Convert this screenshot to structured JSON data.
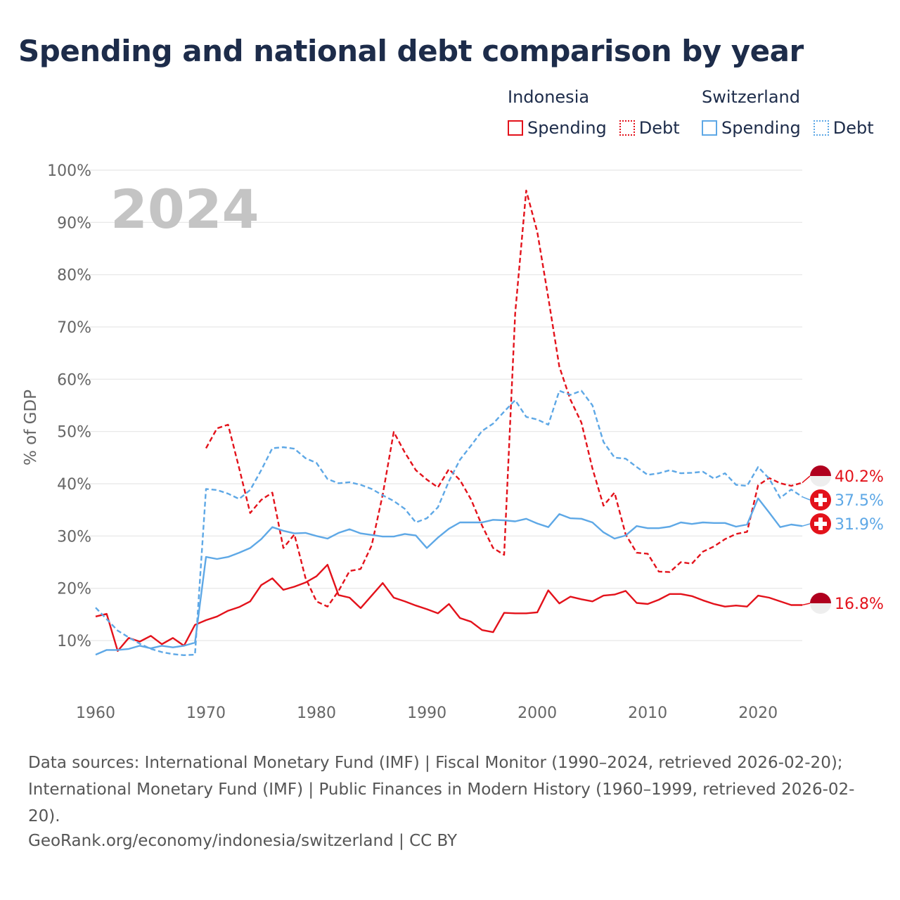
{
  "title": "Spending and national debt comparison by year",
  "legend": {
    "groups": [
      {
        "country": "Indonesia",
        "color": "#e3121b",
        "items": [
          {
            "label": "Spending",
            "style": "solid"
          },
          {
            "label": "Debt",
            "style": "dotted"
          }
        ]
      },
      {
        "country": "Switzerland",
        "color": "#5ea8e6",
        "items": [
          {
            "label": "Spending",
            "style": "solid"
          },
          {
            "label": "Debt",
            "style": "dotted"
          }
        ]
      }
    ]
  },
  "year_watermark": "2024",
  "sources": "Data sources: International Monetary Fund (IMF) | Fiscal Monitor (1990–2024, retrieved 2026-02-20); International Monetary Fund (IMF) | Public Finances in Modern History (1960–1999, retrieved 2026-02-20).",
  "credit": "GeoRank.org/economy/indonesia/switzerland | CC BY",
  "colors": {
    "indonesia": "#e3121b",
    "switzerland": "#5ea8e6",
    "grid": "#e6e6e6",
    "axis_text": "#666666",
    "title": "#1d2c4a"
  },
  "chart_data": {
    "type": "line",
    "title": "Spending and national debt comparison by year",
    "xlabel": "",
    "ylabel": "% of GDP",
    "xlim": [
      1960,
      2024
    ],
    "ylim": [
      0,
      100
    ],
    "x_ticks": [
      1960,
      1970,
      1980,
      1990,
      2000,
      2010,
      2020
    ],
    "x_tick_labels": [
      "1960",
      "1970",
      "1980",
      "1990",
      "2000",
      "2010",
      "2020"
    ],
    "y_ticks": [
      10,
      20,
      30,
      40,
      50,
      60,
      70,
      80,
      90,
      100
    ],
    "y_tick_labels": [
      "10%",
      "20%",
      "30%",
      "40%",
      "50%",
      "60%",
      "70%",
      "80%",
      "90%",
      "100%"
    ],
    "grid": true,
    "series": [
      {
        "name": "Indonesia Spending",
        "country": "indonesia",
        "style": "solid",
        "x": [
          1960,
          1961,
          1962,
          1963,
          1964,
          1965,
          1966,
          1967,
          1968,
          1969,
          1970,
          1971,
          1972,
          1973,
          1974,
          1975,
          1976,
          1977,
          1978,
          1979,
          1980,
          1981,
          1982,
          1983,
          1984,
          1985,
          1986,
          1987,
          1988,
          1989,
          1990,
          1991,
          1992,
          1993,
          1994,
          1995,
          1996,
          1997,
          1998,
          1999,
          2000,
          2001,
          2002,
          2003,
          2004,
          2005,
          2006,
          2007,
          2008,
          2009,
          2010,
          2011,
          2012,
          2013,
          2014,
          2015,
          2016,
          2017,
          2018,
          2019,
          2020,
          2021,
          2022,
          2023,
          2024
        ],
        "values": [
          14.6,
          15.1,
          8.0,
          10.5,
          9.8,
          10.9,
          9.3,
          10.5,
          9.0,
          13.0,
          13.9,
          14.6,
          15.7,
          16.4,
          17.5,
          20.6,
          21.9,
          19.7,
          20.3,
          21.1,
          22.3,
          24.5,
          18.7,
          18.2,
          16.2,
          18.6,
          21.0,
          18.2,
          17.5,
          16.7,
          16.0,
          15.2,
          17.0,
          14.3,
          13.6,
          12.0,
          11.6,
          15.3,
          15.2,
          15.2,
          15.4,
          19.6,
          17.1,
          18.4,
          17.9,
          17.5,
          18.6,
          18.8,
          19.5,
          17.2,
          17.0,
          17.8,
          18.9,
          18.9,
          18.5,
          17.7,
          17.0,
          16.5,
          16.7,
          16.5,
          18.6,
          18.2,
          17.5,
          16.8,
          16.8
        ]
      },
      {
        "name": "Indonesia Debt",
        "country": "indonesia",
        "style": "dotted",
        "x": [
          1970,
          1971,
          1972,
          1973,
          1974,
          1975,
          1976,
          1977,
          1978,
          1979,
          1980,
          1981,
          1982,
          1983,
          1984,
          1985,
          1986,
          1987,
          1988,
          1989,
          1990,
          1991,
          1992,
          1993,
          1994,
          1995,
          1996,
          1997,
          1998,
          1999,
          2000,
          2001,
          2002,
          2003,
          2004,
          2005,
          2006,
          2007,
          2008,
          2009,
          2010,
          2011,
          2012,
          2013,
          2014,
          2015,
          2016,
          2017,
          2018,
          2019,
          2020,
          2021,
          2022,
          2023,
          2024
        ],
        "values": [
          46.8,
          50.6,
          51.3,
          43.0,
          34.4,
          36.9,
          38.3,
          27.7,
          30.3,
          22.0,
          17.5,
          16.5,
          19.5,
          23.3,
          23.7,
          28.2,
          37.9,
          49.9,
          46.0,
          42.6,
          40.8,
          39.3,
          42.8,
          40.7,
          37.0,
          32.0,
          27.7,
          26.4,
          72.6,
          96.1,
          88.2,
          75.6,
          62.4,
          56.1,
          51.7,
          42.9,
          35.8,
          38.3,
          30.3,
          26.8,
          26.6,
          23.2,
          23.1,
          25.0,
          24.7,
          27.0,
          28.0,
          29.4,
          30.4,
          30.8,
          39.7,
          41.1,
          40.1,
          39.6,
          40.2
        ]
      },
      {
        "name": "Switzerland Spending",
        "country": "switzerland",
        "style": "solid",
        "x": [
          1960,
          1961,
          1962,
          1963,
          1964,
          1965,
          1966,
          1967,
          1968,
          1969,
          1970,
          1971,
          1972,
          1973,
          1974,
          1975,
          1976,
          1977,
          1978,
          1979,
          1980,
          1981,
          1982,
          1983,
          1984,
          1985,
          1986,
          1987,
          1988,
          1989,
          1990,
          1991,
          1992,
          1993,
          1994,
          1995,
          1996,
          1997,
          1998,
          1999,
          2000,
          2001,
          2002,
          2003,
          2004,
          2005,
          2006,
          2007,
          2008,
          2009,
          2010,
          2011,
          2012,
          2013,
          2014,
          2015,
          2016,
          2017,
          2018,
          2019,
          2020,
          2021,
          2022,
          2023,
          2024
        ],
        "values": [
          7.3,
          8.2,
          8.2,
          8.4,
          9.0,
          8.5,
          9.0,
          8.7,
          9.0,
          9.6,
          26.0,
          25.6,
          26.0,
          26.8,
          27.7,
          29.4,
          31.7,
          31.0,
          30.5,
          30.6,
          30.0,
          29.5,
          30.6,
          31.3,
          30.5,
          30.2,
          29.9,
          29.9,
          30.4,
          30.1,
          27.7,
          29.7,
          31.4,
          32.6,
          32.6,
          32.6,
          33.1,
          33.0,
          32.8,
          33.3,
          32.4,
          31.7,
          34.2,
          33.4,
          33.3,
          32.6,
          30.7,
          29.5,
          30.1,
          31.9,
          31.5,
          31.5,
          31.8,
          32.6,
          32.3,
          32.6,
          32.5,
          32.5,
          31.8,
          32.2,
          37.2,
          34.5,
          31.7,
          32.2,
          31.9
        ]
      },
      {
        "name": "Switzerland Debt",
        "country": "switzerland",
        "style": "dotted",
        "x": [
          1960,
          1961,
          1962,
          1963,
          1964,
          1965,
          1966,
          1967,
          1968,
          1969,
          1970,
          1971,
          1972,
          1973,
          1974,
          1975,
          1976,
          1977,
          1978,
          1979,
          1980,
          1981,
          1982,
          1983,
          1984,
          1985,
          1986,
          1987,
          1988,
          1989,
          1990,
          1991,
          1992,
          1993,
          1994,
          1995,
          1996,
          1997,
          1998,
          1999,
          2000,
          2001,
          2002,
          2003,
          2004,
          2005,
          2006,
          2007,
          2008,
          2009,
          2010,
          2011,
          2012,
          2013,
          2014,
          2015,
          2016,
          2017,
          2018,
          2019,
          2020,
          2021,
          2022,
          2023,
          2024
        ],
        "values": [
          16.3,
          14.1,
          11.9,
          10.6,
          9.4,
          8.4,
          7.8,
          7.4,
          7.2,
          7.3,
          39.0,
          38.8,
          38.1,
          37.1,
          38.8,
          42.6,
          46.8,
          47.0,
          46.7,
          44.9,
          44.0,
          40.9,
          40.1,
          40.3,
          39.8,
          39.0,
          37.8,
          36.7,
          35.2,
          32.6,
          33.4,
          35.5,
          40.5,
          44.6,
          47.3,
          50.1,
          51.5,
          53.8,
          56.0,
          52.8,
          52.3,
          51.3,
          57.8,
          57.0,
          57.8,
          55.0,
          48.0,
          45.0,
          44.8,
          43.2,
          41.7,
          42.0,
          42.6,
          42.0,
          42.1,
          42.3,
          41.0,
          42.0,
          39.8,
          39.6,
          43.2,
          41.0,
          37.3,
          38.9,
          37.5
        ]
      }
    ],
    "end_labels": [
      {
        "country": "indonesia",
        "label": "40.2%",
        "value": 40.2
      },
      {
        "country": "switzerland",
        "label": "37.5%",
        "value": 37.5
      },
      {
        "country": "switzerland",
        "label": "31.9%",
        "value": 31.9
      },
      {
        "country": "indonesia",
        "label": "16.8%",
        "value": 16.8
      }
    ]
  }
}
